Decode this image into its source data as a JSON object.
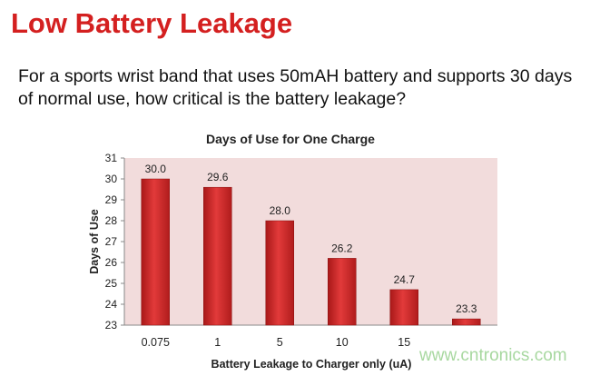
{
  "slide": {
    "title": "Low Battery Leakage",
    "question": "For a sports wrist band that uses 50mAH battery and supports 30 days of normal use, how critical is the battery leakage?",
    "watermark": "www.cntronics.com"
  },
  "colors": {
    "title": "#d42020",
    "bar": "#d93030",
    "plot_bg": "#f2dcdc"
  },
  "chart_data": {
    "type": "bar",
    "title": "Days of Use for One Charge",
    "xlabel": "Battery Leakage to Charger only (uA)",
    "ylabel": "Days of Use",
    "categories": [
      "0.075",
      "1",
      "5",
      "10",
      "15",
      ""
    ],
    "values": [
      30.0,
      29.6,
      28.0,
      26.2,
      24.7,
      23.3
    ],
    "data_labels": [
      "30.0",
      "29.6",
      "28.0",
      "26.2",
      "24.7",
      "23.3"
    ],
    "ylim": [
      23,
      31
    ],
    "yticks": [
      23,
      24,
      25,
      26,
      27,
      28,
      29,
      30,
      31
    ],
    "grid": false,
    "legend": "none"
  }
}
